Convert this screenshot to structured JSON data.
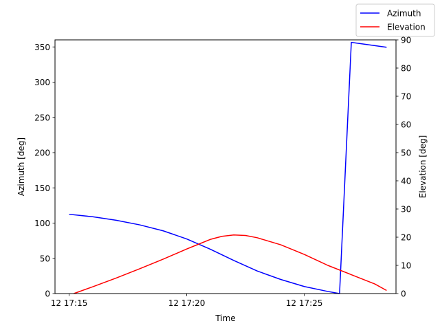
{
  "chart_data": {
    "type": "line",
    "xlabel": "Time",
    "ylabel_left": "Azimuth [deg]",
    "ylabel_right": "Elevation [deg]",
    "x_unit": "minutes",
    "x_ticks": [
      {
        "value": "17:15",
        "label": "12 17:15"
      },
      {
        "value": "17:20",
        "label": "12 17:20"
      },
      {
        "value": "17:25",
        "label": "12 17:25"
      }
    ],
    "xlim": [
      "17:14.4",
      "17:28.9"
    ],
    "ylim_left": [
      0,
      360
    ],
    "yticks_left": [
      "0",
      "50",
      "100",
      "150",
      "200",
      "250",
      "300",
      "350"
    ],
    "ylim_right": [
      0,
      90
    ],
    "yticks_right": [
      "0",
      "10",
      "20",
      "30",
      "40",
      "50",
      "60",
      "70",
      "80",
      "90"
    ],
    "grid": false,
    "legend": "top-right",
    "series": [
      {
        "name": "Azimuth",
        "color": "#0000ff",
        "axis": "left",
        "x": [
          "17:15",
          "17:16",
          "17:17",
          "17:18",
          "17:19",
          "17:20",
          "17:21",
          "17:22",
          "17:23",
          "17:24",
          "17:25",
          "17:26",
          "17:26.5",
          "17:27",
          "17:28.5"
        ],
        "y": [
          112.5,
          109,
          104,
          97.5,
          89,
          77.5,
          63,
          47,
          32,
          20,
          10,
          3,
          0,
          356.5,
          349.5
        ]
      },
      {
        "name": "Elevation",
        "color": "#ff0000",
        "axis": "right",
        "x": [
          "17:15.2",
          "17:16",
          "17:17",
          "17:18",
          "17:19",
          "17:20",
          "17:20.5",
          "17:21",
          "17:21.5",
          "17:22",
          "17:22.5",
          "17:23",
          "17:24",
          "17:25",
          "17:26",
          "17:27",
          "17:28",
          "17:28.5"
        ],
        "y": [
          0,
          2.4,
          5.5,
          8.8,
          12.2,
          15.8,
          17.5,
          19.2,
          20.3,
          20.8,
          20.6,
          19.8,
          17.3,
          13.9,
          10,
          6.7,
          3.4,
          1.1
        ]
      }
    ]
  }
}
